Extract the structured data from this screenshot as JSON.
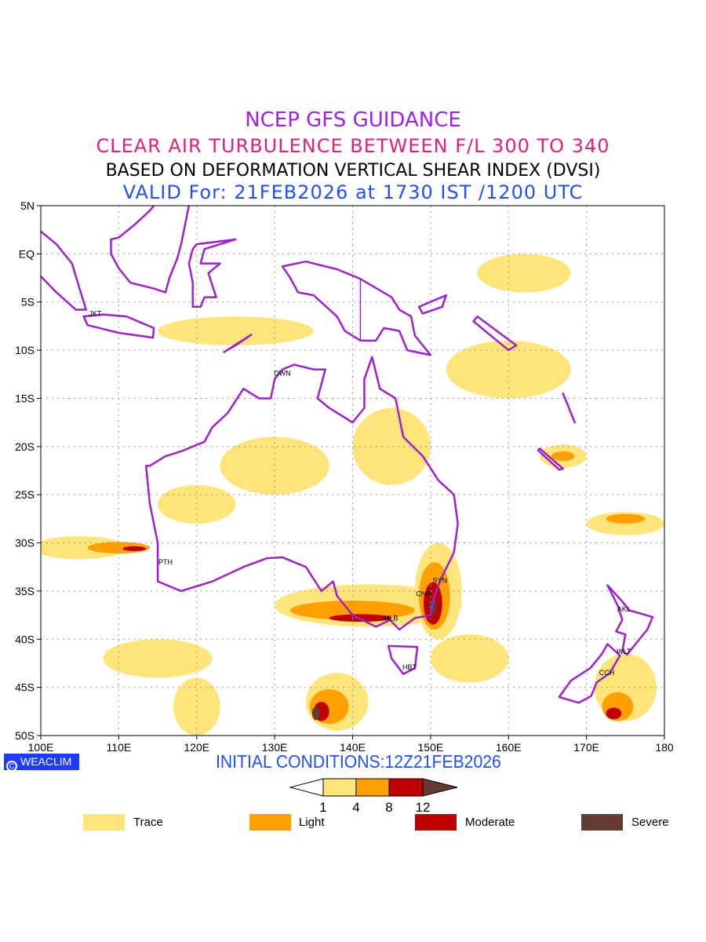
{
  "title": {
    "line1": "NCEP GFS GUIDANCE",
    "line2": "CLEAR AIR TURBULENCE BETWEEN F/L 300 TO 340",
    "line3": "BASED ON DEFORMATION VERTICAL SHEAR INDEX (DVSI)",
    "line4": "VALID For: 21FEB2026 at 1730 IST /1200 UTC"
  },
  "map": {
    "lon_range": [
      100,
      180
    ],
    "lat_range": [
      -50,
      5
    ],
    "lon_ticks": [
      "100E",
      "110E",
      "120E",
      "130E",
      "140E",
      "150E",
      "160E",
      "170E",
      "180"
    ],
    "lat_ticks": [
      "5N",
      "EQ",
      "5S",
      "10S",
      "15S",
      "20S",
      "25S",
      "30S",
      "35S",
      "40S",
      "45S",
      "50S"
    ],
    "cities": [
      {
        "name": "JKT",
        "lon": 107,
        "lat": -6.2
      },
      {
        "name": "DWN",
        "lon": 131,
        "lat": -12.4
      },
      {
        "name": "PTH",
        "lon": 116,
        "lat": -32
      },
      {
        "name": "SYN",
        "lon": 151.2,
        "lat": -33.9
      },
      {
        "name": "CNB",
        "lon": 149.1,
        "lat": -35.3
      },
      {
        "name": "MLB",
        "lon": 144.9,
        "lat": -37.8
      },
      {
        "name": "HBT",
        "lon": 147.3,
        "lat": -42.9
      },
      {
        "name": "AKL",
        "lon": 174.8,
        "lat": -36.9
      },
      {
        "name": "WLT",
        "lon": 174.8,
        "lat": -41.3
      },
      {
        "name": "CCH",
        "lon": 172.6,
        "lat": -43.5
      }
    ],
    "turbulence_areas": [
      {
        "level": "trace",
        "lon": 105,
        "lat": -30.5,
        "rlon": 6,
        "rlat": 1.2
      },
      {
        "level": "light",
        "lon": 110,
        "lat": -30.5,
        "rlon": 4,
        "rlat": 0.6
      },
      {
        "level": "moderate",
        "lon": 112,
        "lat": -30.6,
        "rlon": 1.5,
        "rlat": 0.25
      },
      {
        "level": "trace",
        "lon": 142,
        "lat": -36.5,
        "rlon": 12,
        "rlat": 2.2
      },
      {
        "level": "light",
        "lon": 140,
        "lat": -37,
        "rlon": 8,
        "rlat": 1
      },
      {
        "level": "moderate",
        "lon": 141,
        "lat": -37.8,
        "rlon": 4,
        "rlat": 0.4
      },
      {
        "level": "trace",
        "lon": 151,
        "lat": -35,
        "rlon": 3,
        "rlat": 5
      },
      {
        "level": "light",
        "lon": 150.5,
        "lat": -35.5,
        "rlon": 2,
        "rlat": 3.5
      },
      {
        "level": "moderate",
        "lon": 150.3,
        "lat": -36.3,
        "rlon": 1.2,
        "rlat": 2.2
      },
      {
        "level": "severe",
        "lon": 150.3,
        "lat": -36.6,
        "rlon": 0.5,
        "rlat": 0.8
      },
      {
        "level": "trace",
        "lon": 138,
        "lat": -46.5,
        "rlon": 4,
        "rlat": 3
      },
      {
        "level": "light",
        "lon": 137,
        "lat": -47,
        "rlon": 2.5,
        "rlat": 1.8
      },
      {
        "level": "moderate",
        "lon": 136,
        "lat": -47.5,
        "rlon": 1,
        "rlat": 1
      },
      {
        "level": "severe",
        "lon": 135.3,
        "lat": -47.7,
        "rlon": 0.5,
        "rlat": 0.7
      },
      {
        "level": "trace",
        "lon": 175,
        "lat": -45,
        "rlon": 4,
        "rlat": 3.5
      },
      {
        "level": "light",
        "lon": 174,
        "lat": -47,
        "rlon": 2,
        "rlat": 1.5
      },
      {
        "level": "moderate",
        "lon": 173.5,
        "lat": -47.7,
        "rlon": 1,
        "rlat": 0.6
      },
      {
        "level": "trace",
        "lon": 167,
        "lat": -21,
        "rlon": 3,
        "rlat": 1.2
      },
      {
        "level": "light",
        "lon": 167,
        "lat": -21,
        "rlon": 1.5,
        "rlat": 0.5
      },
      {
        "level": "trace",
        "lon": 175,
        "lat": -28,
        "rlon": 5,
        "rlat": 1.2
      },
      {
        "level": "light",
        "lon": 175,
        "lat": -27.5,
        "rlon": 2.5,
        "rlat": 0.5
      },
      {
        "level": "trace",
        "lon": 130,
        "lat": -22,
        "rlon": 7,
        "rlat": 3
      },
      {
        "level": "trace",
        "lon": 120,
        "lat": -26,
        "rlon": 5,
        "rlat": 2
      },
      {
        "level": "trace",
        "lon": 145,
        "lat": -20,
        "rlon": 5,
        "rlat": 4
      },
      {
        "level": "trace",
        "lon": 125,
        "lat": -8,
        "rlon": 10,
        "rlat": 1.5
      },
      {
        "level": "trace",
        "lon": 160,
        "lat": -12,
        "rlon": 8,
        "rlat": 3
      },
      {
        "level": "trace",
        "lon": 155,
        "lat": -42,
        "rlon": 5,
        "rlat": 2.5
      },
      {
        "level": "trace",
        "lon": 115,
        "lat": -42,
        "rlon": 7,
        "rlat": 2
      },
      {
        "level": "trace",
        "lon": 162,
        "lat": -2,
        "rlon": 6,
        "rlat": 2
      },
      {
        "level": "trace",
        "lon": 120,
        "lat": -47,
        "rlon": 3,
        "rlat": 3
      }
    ]
  },
  "footer": {
    "brand": "WEACLIM",
    "brand_symbol": "C",
    "initial_conditions": "INITIAL CONDITIONS:12Z21FEB2026"
  },
  "colorbar": {
    "ticks": [
      "1",
      "4",
      "8",
      "12"
    ],
    "colors": {
      "trace": "#ffe47a",
      "light": "#ffa000",
      "moderate": "#c00000",
      "severe": "#653a30",
      "coast": "#a020d0"
    }
  },
  "legend": [
    {
      "label": "Trace",
      "color": "#ffe47a"
    },
    {
      "label": "Light",
      "color": "#ffa000"
    },
    {
      "label": "Moderate",
      "color": "#c00000"
    },
    {
      "label": "Severe",
      "color": "#653a30"
    }
  ]
}
